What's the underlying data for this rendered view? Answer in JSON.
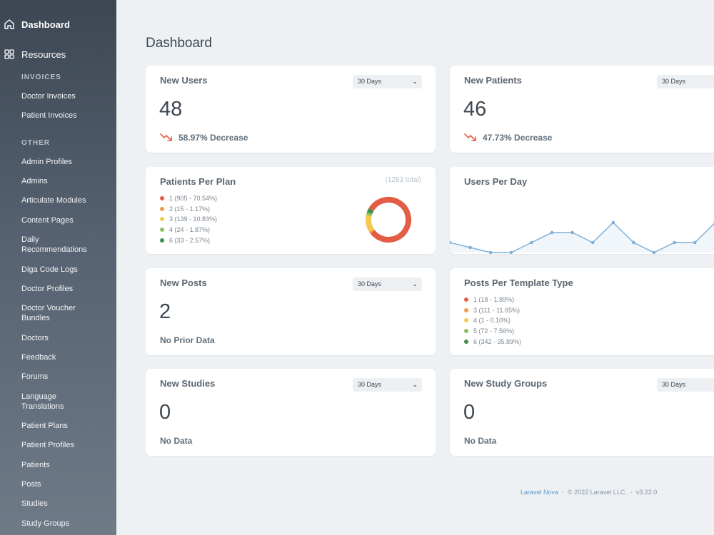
{
  "sidebar": {
    "dashboard_label": "Dashboard",
    "resources_label": "Resources",
    "sections": [
      {
        "title": "INVOICES",
        "items": [
          "Doctor Invoices",
          "Patient Invoices"
        ]
      },
      {
        "title": "OTHER",
        "items": [
          "Admin Profiles",
          "Admins",
          "Articulate Modules",
          "Content Pages",
          "Daily Recommendations",
          "Diga Code Logs",
          "Doctor Profiles",
          "Doctor Voucher Bundles",
          "Doctors",
          "Feedback",
          "Forums",
          "Language Translations",
          "Patient Plans",
          "Patient Profiles",
          "Patients",
          "Posts",
          "Studies",
          "Study Groups"
        ]
      }
    ]
  },
  "page_title": "Dashboard",
  "cards": {
    "new_users": {
      "title": "New Users",
      "range": "30 Days",
      "value": "48",
      "trend": "58.97% Decrease"
    },
    "new_patients": {
      "title": "New Patients",
      "range": "30 Days",
      "value": "46",
      "trend": "47.73% Decrease"
    },
    "patients_per_plan": {
      "title": "Patients Per Plan",
      "total": "(1283 total)",
      "legend": [
        {
          "label": "1 (905 - 70.54%)",
          "color": "#e35d45",
          "value": 905
        },
        {
          "label": "2 (15 - 1.17%)",
          "color": "#f09a4d",
          "value": 15
        },
        {
          "label": "3 (139 - 10.83%)",
          "color": "#f2cb4e",
          "value": 139
        },
        {
          "label": "4 (24 - 1.87%)",
          "color": "#8fc15b",
          "value": 24
        },
        {
          "label": "6 (33 - 2.57%)",
          "color": "#3f8f4f",
          "value": 33
        }
      ]
    },
    "users_per_day": {
      "title": "Users Per Day",
      "values": [
        2,
        1,
        0,
        0,
        2,
        4,
        4,
        2,
        6,
        2,
        0,
        2,
        2,
        6
      ],
      "line_color": "#7fb0d8"
    },
    "new_posts": {
      "title": "New Posts",
      "range": "30 Days",
      "value": "2",
      "note": "No Prior Data"
    },
    "posts_per_template": {
      "title": "Posts Per Template Type",
      "legend": [
        {
          "label": "1 (18 - 1.89%)",
          "color": "#e35d45"
        },
        {
          "label": "3 (111 - 11.65%)",
          "color": "#f09a4d"
        },
        {
          "label": "4 (1 - 0.10%)",
          "color": "#f2cb4e"
        },
        {
          "label": "5 (72 - 7.56%)",
          "color": "#8fc15b"
        },
        {
          "label": "6 (342 - 35.89%)",
          "color": "#3f8f4f"
        }
      ]
    },
    "new_studies": {
      "title": "New Studies",
      "range": "30 Days",
      "value": "0",
      "note": "No Data"
    },
    "new_study_groups": {
      "title": "New Study Groups",
      "range": "30 Days",
      "value": "0"
    }
  },
  "footer": {
    "link": "Laravel Nova",
    "copyright": "© 2022 Laravel LLC.",
    "version": "v3.22.0"
  }
}
